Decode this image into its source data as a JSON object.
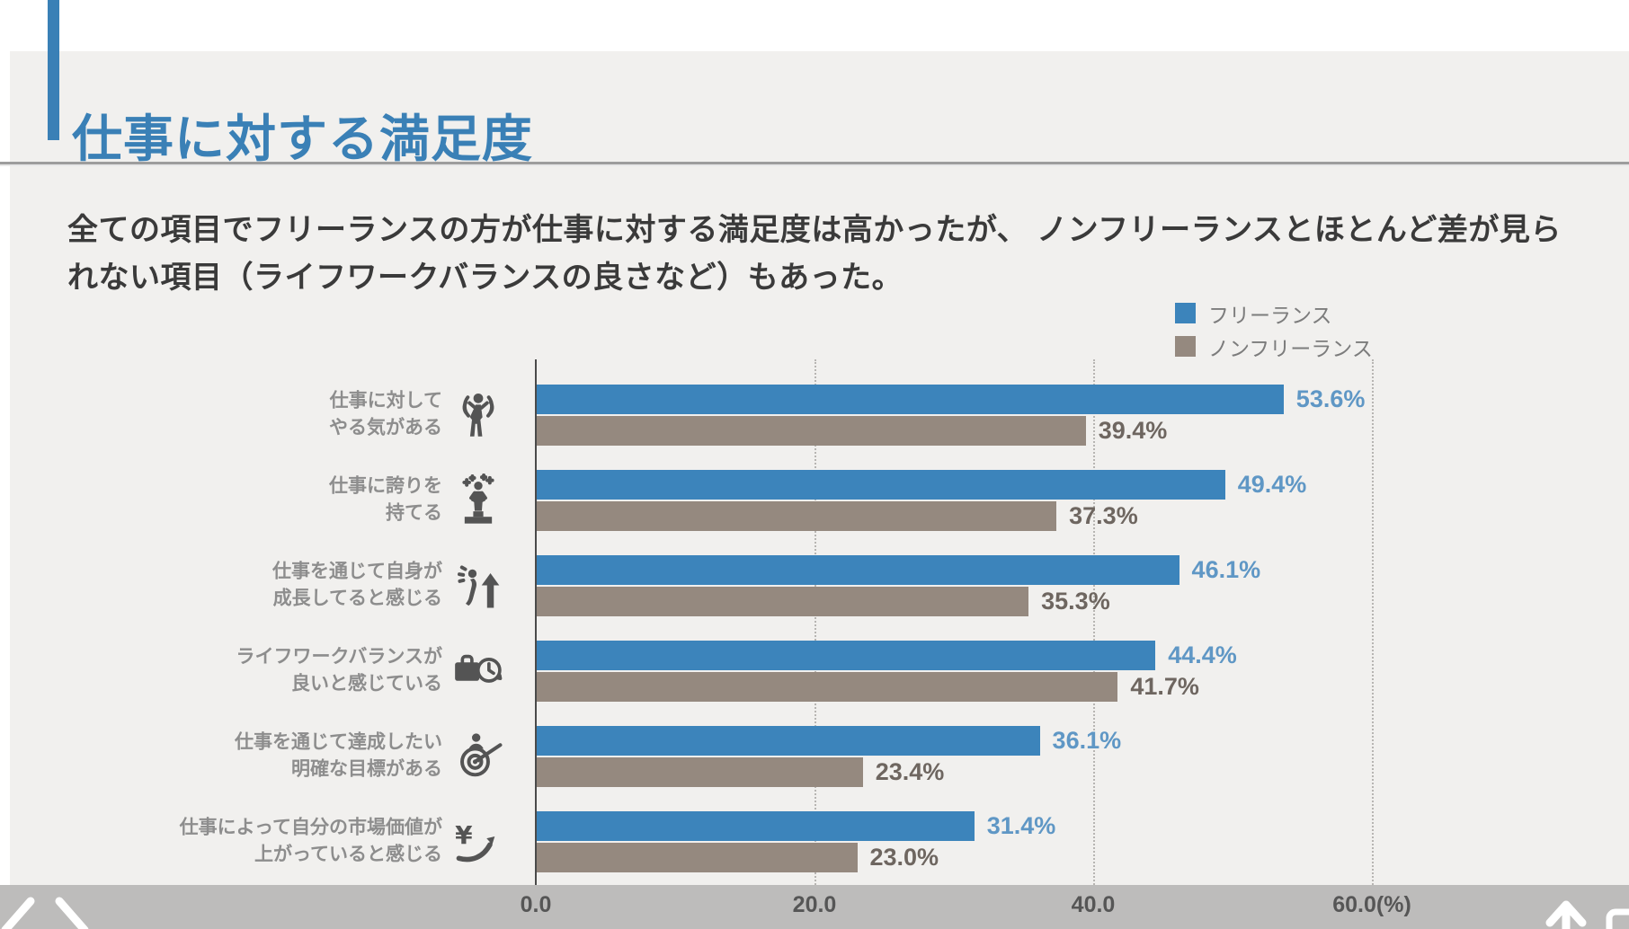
{
  "page": {
    "title": "仕事に対する満足度",
    "subtitle": "全ての項目でフリーランスの方が仕事に対する満足度は高かったが、 ノンフリーランスとほとんど差が見られない項目（ライフワークバランスの良さなど）もあった。"
  },
  "legend": {
    "items": [
      {
        "label": "フリーランス",
        "color": "#3c84bb"
      },
      {
        "label": "ノンフリーランス",
        "color": "#95897f"
      }
    ]
  },
  "chart_data": {
    "type": "bar",
    "orientation": "horizontal",
    "title": "仕事に対する満足度",
    "categories": [
      {
        "lines": [
          "仕事に対して",
          "やる気がある"
        ],
        "icon": "motivation-icon"
      },
      {
        "lines": [
          "仕事に誇りを",
          "持てる"
        ],
        "icon": "pride-icon"
      },
      {
        "lines": [
          "仕事を通じて自身が",
          "成長してると感じる"
        ],
        "icon": "growth-icon"
      },
      {
        "lines": [
          "ライフワークバランスが",
          "良いと感じている"
        ],
        "icon": "worklife-balance-icon"
      },
      {
        "lines": [
          "仕事を通じて達成したい",
          "明確な目標がある"
        ],
        "icon": "goal-icon"
      },
      {
        "lines": [
          "仕事によって自分の市場価値が",
          "上がっていると感じる"
        ],
        "icon": "market-value-icon"
      }
    ],
    "series": [
      {
        "name": "フリーランス",
        "color": "#3c84bb",
        "label_color": "#5f97c5",
        "values": [
          53.6,
          49.4,
          46.1,
          44.4,
          36.1,
          31.4
        ],
        "labels": [
          "53.6%",
          "49.4%",
          "46.1%",
          "44.4%",
          "36.1%",
          "31.4%"
        ]
      },
      {
        "name": "ノンフリーランス",
        "color": "#95897f",
        "label_color": "#6e6660",
        "values": [
          39.4,
          37.3,
          35.3,
          41.7,
          23.4,
          23.0
        ],
        "labels": [
          "39.4%",
          "37.3%",
          "35.3%",
          "41.7%",
          "23.4%",
          "23.0%"
        ]
      }
    ],
    "x_axis": {
      "max": 62,
      "gridline_values": [
        20,
        40,
        60
      ],
      "ticks": [
        {
          "value": 0,
          "label": "0.0"
        },
        {
          "value": 20,
          "label": "20.0"
        },
        {
          "value": 40,
          "label": "40.0"
        },
        {
          "value": 60,
          "label": "60.0(%)"
        }
      ]
    },
    "legend_position": "top-right",
    "grid": "dotted-vertical"
  },
  "viewer": {
    "nav_prev": "previous-page",
    "nav_next": "next-page",
    "scroll_top": "scroll-to-top"
  }
}
